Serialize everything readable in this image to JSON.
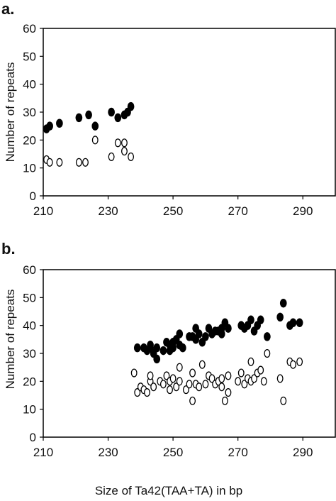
{
  "chart_data": [
    {
      "type": "scatter",
      "panel_label": "a.",
      "ylabel": "Number of repeats",
      "xlabel": "",
      "xlim": [
        210,
        300
      ],
      "ylim": [
        0,
        60
      ],
      "xticks": [
        210,
        230,
        250,
        270,
        290
      ],
      "yticks": [
        0,
        10,
        20,
        30,
        40,
        50,
        60
      ],
      "grid": false,
      "series": [
        {
          "marker": "filled",
          "color": "#000000",
          "points": [
            [
              211,
              24
            ],
            [
              212,
              25
            ],
            [
              215,
              26
            ],
            [
              221,
              28
            ],
            [
              224,
              29
            ],
            [
              226,
              25
            ],
            [
              231,
              30
            ],
            [
              233,
              28
            ],
            [
              235,
              29
            ],
            [
              236,
              30
            ],
            [
              237,
              32
            ]
          ]
        },
        {
          "marker": "open",
          "color": "#000000",
          "points": [
            [
              211,
              13
            ],
            [
              212,
              12
            ],
            [
              215,
              12
            ],
            [
              221,
              12
            ],
            [
              223,
              12
            ],
            [
              226,
              20
            ],
            [
              231,
              14
            ],
            [
              233,
              19
            ],
            [
              235,
              19
            ],
            [
              235,
              16
            ],
            [
              237,
              14
            ]
          ]
        }
      ]
    },
    {
      "type": "scatter",
      "panel_label": "b.",
      "ylabel": "Number of repeats",
      "xlabel": "Size of Ta42(TAA+TA) in bp",
      "xlim": [
        210,
        300
      ],
      "ylim": [
        0,
        60
      ],
      "xticks": [
        210,
        230,
        250,
        270,
        290
      ],
      "yticks": [
        0,
        10,
        20,
        30,
        40,
        50,
        60
      ],
      "grid": false,
      "series": [
        {
          "marker": "filled",
          "color": "#000000",
          "points": [
            [
              239,
              32
            ],
            [
              241,
              32
            ],
            [
              242,
              31
            ],
            [
              243,
              32
            ],
            [
              243,
              33
            ],
            [
              244,
              30
            ],
            [
              245,
              32
            ],
            [
              245,
              28
            ],
            [
              247,
              31
            ],
            [
              248,
              34
            ],
            [
              249,
              33
            ],
            [
              249,
              31
            ],
            [
              250,
              32
            ],
            [
              250,
              34
            ],
            [
              251,
              35
            ],
            [
              252,
              33
            ],
            [
              252,
              37
            ],
            [
              253,
              32
            ],
            [
              255,
              36
            ],
            [
              256,
              36
            ],
            [
              257,
              39
            ],
            [
              257,
              35
            ],
            [
              258,
              37
            ],
            [
              259,
              34
            ],
            [
              260,
              36
            ],
            [
              261,
              39
            ],
            [
              262,
              37
            ],
            [
              263,
              38
            ],
            [
              264,
              38
            ],
            [
              265,
              39
            ],
            [
              265,
              37
            ],
            [
              266,
              41
            ],
            [
              267,
              39
            ],
            [
              271,
              40
            ],
            [
              272,
              39
            ],
            [
              273,
              40
            ],
            [
              274,
              42
            ],
            [
              275,
              38
            ],
            [
              276,
              40
            ],
            [
              277,
              42
            ],
            [
              279,
              36
            ],
            [
              283,
              43
            ],
            [
              284,
              48
            ],
            [
              286,
              40
            ],
            [
              287,
              41
            ],
            [
              289,
              41
            ]
          ]
        },
        {
          "marker": "open",
          "color": "#000000",
          "points": [
            [
              238,
              23
            ],
            [
              239,
              16
            ],
            [
              240,
              18
            ],
            [
              241,
              17
            ],
            [
              242,
              16
            ],
            [
              243,
              20
            ],
            [
              243,
              22
            ],
            [
              244,
              18
            ],
            [
              246,
              20
            ],
            [
              247,
              19
            ],
            [
              248,
              22
            ],
            [
              249,
              17
            ],
            [
              249,
              20
            ],
            [
              250,
              21
            ],
            [
              251,
              18
            ],
            [
              252,
              25
            ],
            [
              252,
              20
            ],
            [
              254,
              17
            ],
            [
              255,
              19
            ],
            [
              256,
              23
            ],
            [
              256,
              13
            ],
            [
              257,
              19
            ],
            [
              258,
              18
            ],
            [
              259,
              26
            ],
            [
              260,
              19
            ],
            [
              261,
              22
            ],
            [
              262,
              21
            ],
            [
              263,
              19
            ],
            [
              264,
              20
            ],
            [
              265,
              18
            ],
            [
              265,
              21
            ],
            [
              266,
              13
            ],
            [
              267,
              16
            ],
            [
              267,
              22
            ],
            [
              270,
              20
            ],
            [
              271,
              23
            ],
            [
              272,
              19
            ],
            [
              273,
              21
            ],
            [
              274,
              20
            ],
            [
              274,
              27
            ],
            [
              275,
              21
            ],
            [
              276,
              23
            ],
            [
              277,
              24
            ],
            [
              278,
              20
            ],
            [
              279,
              30
            ],
            [
              283,
              21
            ],
            [
              284,
              13
            ],
            [
              286,
              27
            ],
            [
              287,
              26
            ],
            [
              289,
              27
            ]
          ]
        }
      ]
    }
  ]
}
